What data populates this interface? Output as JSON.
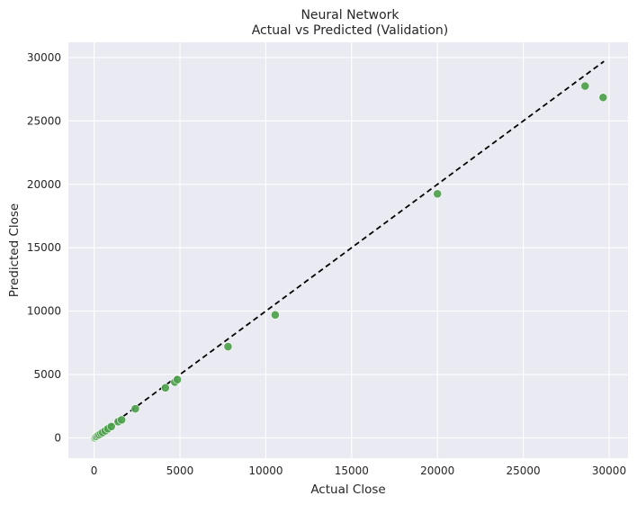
{
  "chart_data": {
    "type": "scatter",
    "title": "Neural Network",
    "subtitle": "Actual vs Predicted (Validation)",
    "xlabel": "Actual Close",
    "ylabel": "Predicted Close",
    "xlim": [
      -1500,
      31100
    ],
    "ylim": [
      -1600,
      31200
    ],
    "xticks": [
      0,
      5000,
      10000,
      15000,
      20000,
      25000,
      30000
    ],
    "yticks": [
      0,
      5000,
      10000,
      15000,
      20000,
      25000,
      30000
    ],
    "grid": true,
    "background_color": "#eaeaf2",
    "grid_color": "#ffffff",
    "point_color": "#4c9f4c",
    "reference_line": {
      "style": "dashed",
      "color": "#000000",
      "x": [
        0,
        29700
      ],
      "y": [
        0,
        29700
      ]
    },
    "points": [
      {
        "x": 0,
        "y": 0
      },
      {
        "x": 30,
        "y": 50
      },
      {
        "x": 60,
        "y": 10
      },
      {
        "x": 100,
        "y": 80
      },
      {
        "x": 150,
        "y": 120
      },
      {
        "x": 220,
        "y": 200
      },
      {
        "x": 300,
        "y": 260
      },
      {
        "x": 400,
        "y": 350
      },
      {
        "x": 500,
        "y": 430
      },
      {
        "x": 650,
        "y": 560
      },
      {
        "x": 800,
        "y": 720
      },
      {
        "x": 1000,
        "y": 900
      },
      {
        "x": 1400,
        "y": 1280
      },
      {
        "x": 1600,
        "y": 1420
      },
      {
        "x": 2400,
        "y": 2300
      },
      {
        "x": 4150,
        "y": 3950
      },
      {
        "x": 4700,
        "y": 4400
      },
      {
        "x": 4850,
        "y": 4600
      },
      {
        "x": 7800,
        "y": 7200
      },
      {
        "x": 10550,
        "y": 9700
      },
      {
        "x": 20000,
        "y": 19250
      },
      {
        "x": 28600,
        "y": 27750
      },
      {
        "x": 29650,
        "y": 26850
      }
    ]
  }
}
